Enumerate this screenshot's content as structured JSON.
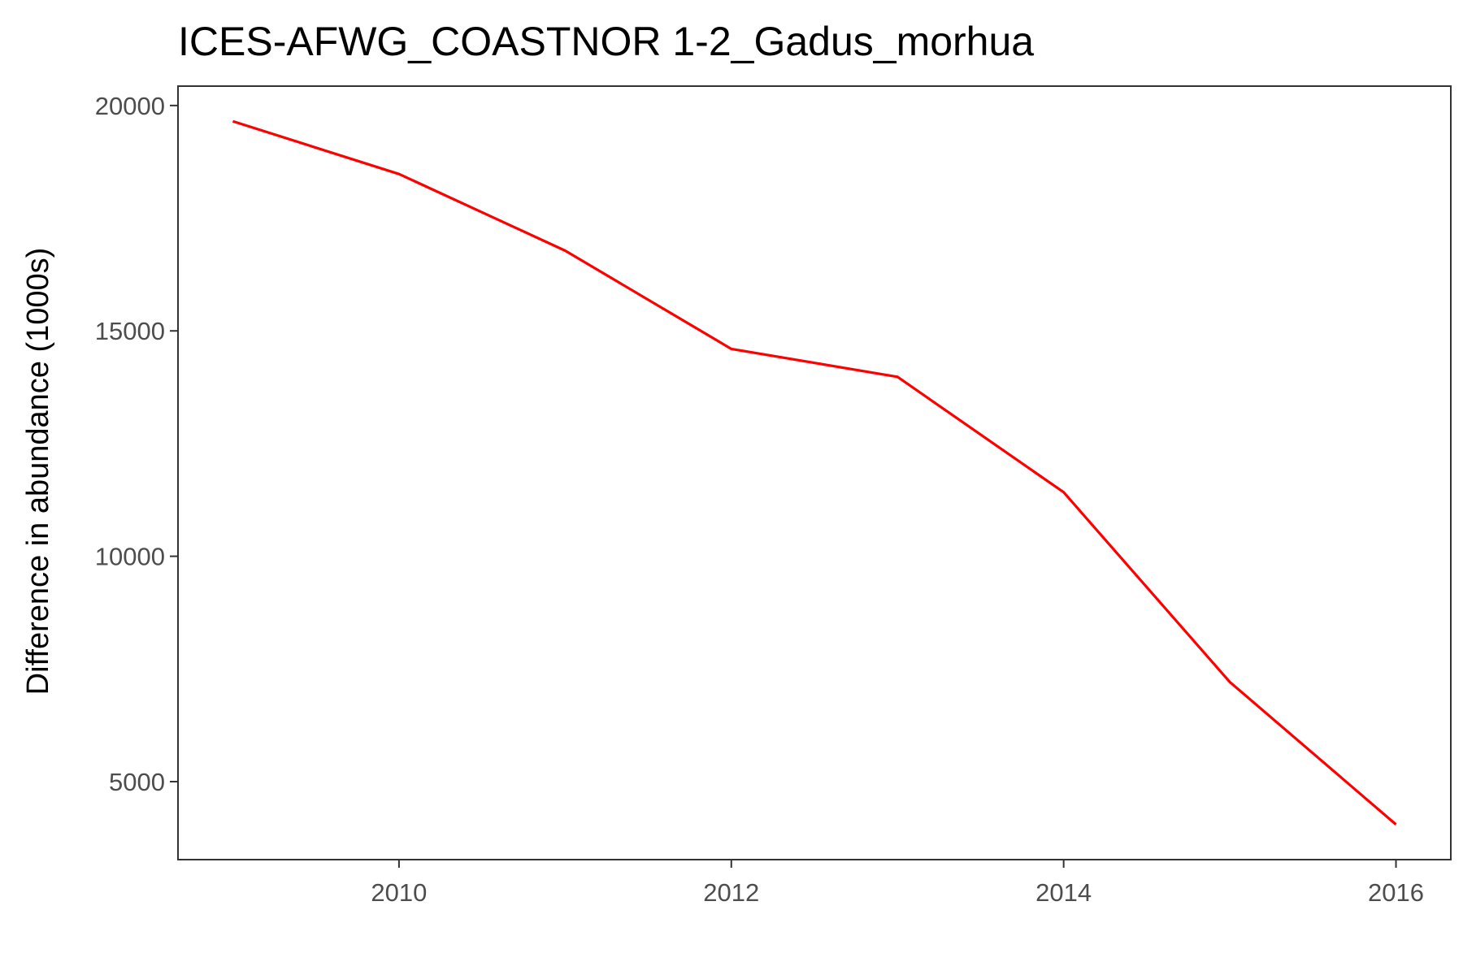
{
  "chart_data": {
    "type": "line",
    "title": "ICES-AFWG_COASTNOR 1-2_Gadus_morhua",
    "xlabel": "",
    "ylabel": "Difference in abundance (1000s)",
    "x": [
      2009,
      2010,
      2011,
      2012,
      2013,
      2014,
      2015,
      2016
    ],
    "series": [
      {
        "values": [
          19650,
          18480,
          16780,
          14600,
          13980,
          11420,
          7210,
          4050
        ],
        "color": "#ff0000"
      }
    ],
    "xlim": [
      2008.67,
      2016.33
    ],
    "ylim": [
      3270,
      20430
    ],
    "x_ticks": [
      2010,
      2012,
      2014,
      2016
    ],
    "x_tick_labels": [
      "2010",
      "2012",
      "2014",
      "2016"
    ],
    "y_ticks": [
      5000,
      10000,
      15000,
      20000
    ],
    "y_tick_labels": [
      "5000",
      "10000",
      "15000",
      "20000"
    ],
    "grid": false,
    "legend": "none"
  }
}
